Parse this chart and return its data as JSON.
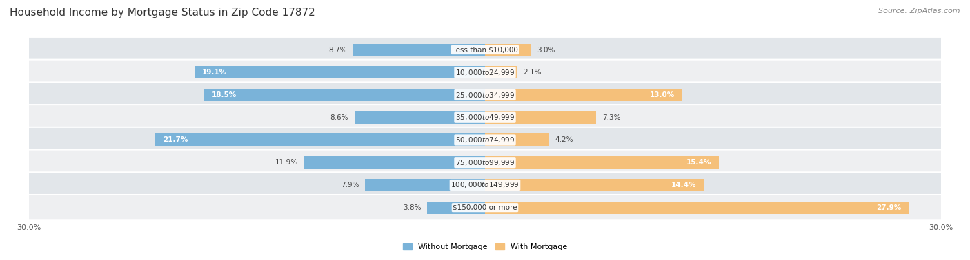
{
  "title": "Household Income by Mortgage Status in Zip Code 17872",
  "source": "Source: ZipAtlas.com",
  "categories": [
    "Less than $10,000",
    "$10,000 to $24,999",
    "$25,000 to $34,999",
    "$35,000 to $49,999",
    "$50,000 to $74,999",
    "$75,000 to $99,999",
    "$100,000 to $149,999",
    "$150,000 or more"
  ],
  "without_mortgage": [
    8.7,
    19.1,
    18.5,
    8.6,
    21.7,
    11.9,
    7.9,
    3.8
  ],
  "with_mortgage": [
    3.0,
    2.1,
    13.0,
    7.3,
    4.2,
    15.4,
    14.4,
    27.9
  ],
  "bar_color_blue": "#7ab3d9",
  "bar_color_orange": "#f5c07a",
  "row_color_dark": "#e2e6ea",
  "row_color_light": "#eeeff1",
  "xlim": 30.0,
  "title_fontsize": 11,
  "source_fontsize": 8,
  "label_fontsize": 7.5,
  "value_fontsize": 7.5,
  "tick_fontsize": 8,
  "legend_fontsize": 8
}
